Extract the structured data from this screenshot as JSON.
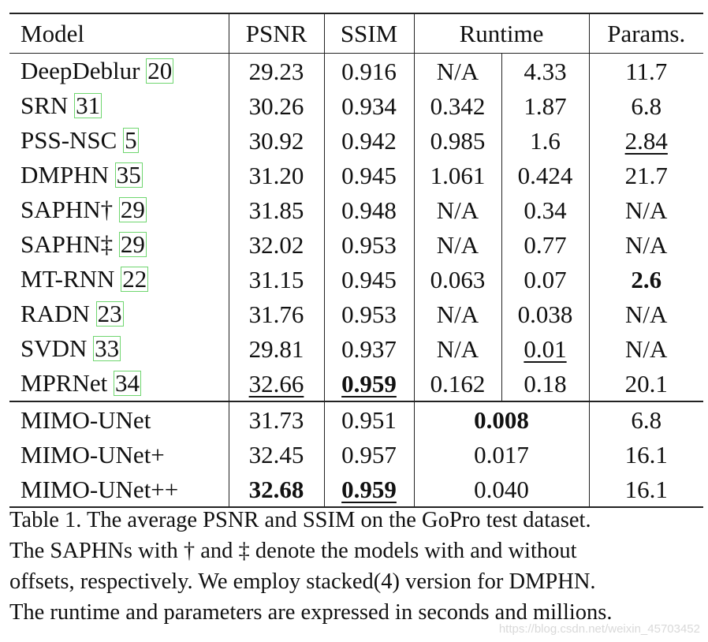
{
  "table": {
    "headers": {
      "model": "Model",
      "psnr": "PSNR",
      "ssim": "SSIM",
      "runtime": "Runtime",
      "params": "Params."
    },
    "rows": [
      {
        "name": "DeepDeblur",
        "ref": "20",
        "psnr": "29.23",
        "ssim": "0.916",
        "rt1": "N/A",
        "rt2": "4.33",
        "params": "11.7"
      },
      {
        "name": "SRN",
        "ref": "31",
        "psnr": "30.26",
        "ssim": "0.934",
        "rt1": "0.342",
        "rt2": "1.87",
        "params": "6.8"
      },
      {
        "name": "PSS-NSC",
        "ref": "5",
        "psnr": "30.92",
        "ssim": "0.942",
        "rt1": "0.985",
        "rt2": "1.6",
        "params": "2.84"
      },
      {
        "name": "DMPHN",
        "ref": "35",
        "psnr": "31.20",
        "ssim": "0.945",
        "rt1": "1.061",
        "rt2": "0.424",
        "params": "21.7"
      },
      {
        "name": "SAPHN†",
        "ref": "29",
        "psnr": "31.85",
        "ssim": "0.948",
        "rt1": "N/A",
        "rt2": "0.34",
        "params": "N/A"
      },
      {
        "name": "SAPHN‡",
        "ref": "29",
        "psnr": "32.02",
        "ssim": "0.953",
        "rt1": "N/A",
        "rt2": "0.77",
        "params": "N/A"
      },
      {
        "name": "MT-RNN",
        "ref": "22",
        "psnr": "31.15",
        "ssim": "0.945",
        "rt1": "0.063",
        "rt2": "0.07",
        "params": "2.6"
      },
      {
        "name": "RADN",
        "ref": "23",
        "psnr": "31.76",
        "ssim": "0.953",
        "rt1": "N/A",
        "rt2": "0.038",
        "params": "N/A"
      },
      {
        "name": "SVDN",
        "ref": "33",
        "psnr": "29.81",
        "ssim": "0.937",
        "rt1": "N/A",
        "rt2": "0.01",
        "params": "N/A"
      },
      {
        "name": "MPRNet",
        "ref": "34",
        "psnr": "32.66",
        "ssim": "0.959",
        "rt1": "0.162",
        "rt2": "0.18",
        "params": "20.1"
      }
    ],
    "proposed": [
      {
        "name": "MIMO-UNet",
        "psnr": "31.73",
        "ssim": "0.951",
        "runtime": "0.008",
        "params": "6.8"
      },
      {
        "name": "MIMO-UNet+",
        "psnr": "32.45",
        "ssim": "0.957",
        "runtime": "0.017",
        "params": "16.1"
      },
      {
        "name": "MIMO-UNet++",
        "psnr": "32.68",
        "ssim": "0.959",
        "runtime": "0.040",
        "params": "16.1"
      }
    ]
  },
  "caption": {
    "line1": "Table 1. The average PSNR and SSIM on the GoPro test dataset.",
    "line2": "The SAPHNs with † and ‡ denote the models with and without",
    "line3": "offsets, respectively.  We employ stacked(4) version for DMPHN.",
    "line4": "The runtime and parameters are expressed in seconds and millions."
  },
  "watermark": "https://blog.csdn.net/weixin_45703452"
}
